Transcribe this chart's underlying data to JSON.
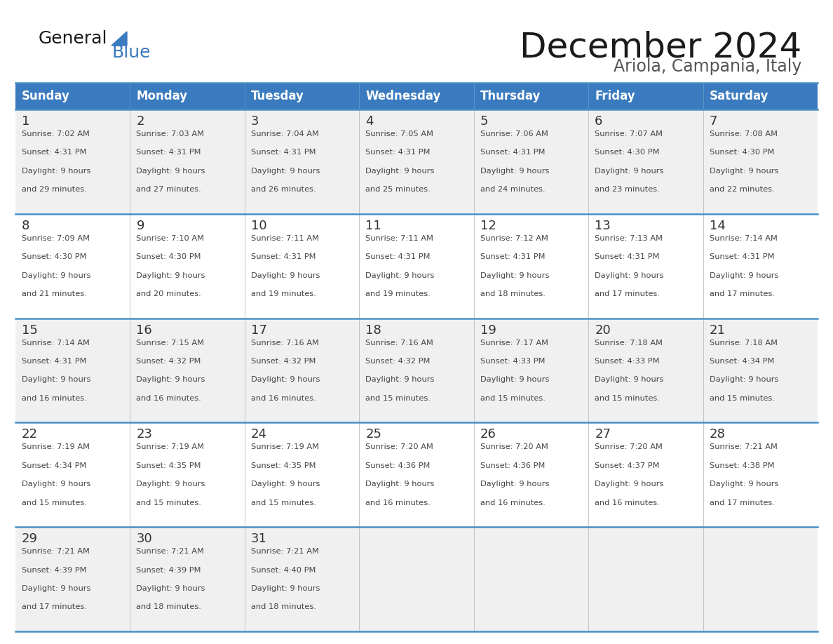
{
  "title": "December 2024",
  "subtitle": "Ariola, Campania, Italy",
  "header_bg_color": "#3a7abf",
  "header_text_color": "#ffffff",
  "days_of_week": [
    "Sunday",
    "Monday",
    "Tuesday",
    "Wednesday",
    "Thursday",
    "Friday",
    "Saturday"
  ],
  "row_bg_even": "#f0f0f0",
  "row_bg_odd": "#ffffff",
  "cell_text_color": "#333333",
  "day_num_color": "#333333",
  "separator_color": "#4a90c4",
  "calendar_data": [
    [
      {
        "day": "1",
        "sunrise": "7:02 AM",
        "sunset": "4:31 PM",
        "daylight_h": "9 hours",
        "daylight_m": "29 minutes"
      },
      {
        "day": "2",
        "sunrise": "7:03 AM",
        "sunset": "4:31 PM",
        "daylight_h": "9 hours",
        "daylight_m": "27 minutes"
      },
      {
        "day": "3",
        "sunrise": "7:04 AM",
        "sunset": "4:31 PM",
        "daylight_h": "9 hours",
        "daylight_m": "26 minutes"
      },
      {
        "day": "4",
        "sunrise": "7:05 AM",
        "sunset": "4:31 PM",
        "daylight_h": "9 hours",
        "daylight_m": "25 minutes"
      },
      {
        "day": "5",
        "sunrise": "7:06 AM",
        "sunset": "4:31 PM",
        "daylight_h": "9 hours",
        "daylight_m": "24 minutes"
      },
      {
        "day": "6",
        "sunrise": "7:07 AM",
        "sunset": "4:30 PM",
        "daylight_h": "9 hours",
        "daylight_m": "23 minutes"
      },
      {
        "day": "7",
        "sunrise": "7:08 AM",
        "sunset": "4:30 PM",
        "daylight_h": "9 hours",
        "daylight_m": "22 minutes"
      }
    ],
    [
      {
        "day": "8",
        "sunrise": "7:09 AM",
        "sunset": "4:30 PM",
        "daylight_h": "9 hours",
        "daylight_m": "21 minutes"
      },
      {
        "day": "9",
        "sunrise": "7:10 AM",
        "sunset": "4:30 PM",
        "daylight_h": "9 hours",
        "daylight_m": "20 minutes"
      },
      {
        "day": "10",
        "sunrise": "7:11 AM",
        "sunset": "4:31 PM",
        "daylight_h": "9 hours",
        "daylight_m": "19 minutes"
      },
      {
        "day": "11",
        "sunrise": "7:11 AM",
        "sunset": "4:31 PM",
        "daylight_h": "9 hours",
        "daylight_m": "19 minutes"
      },
      {
        "day": "12",
        "sunrise": "7:12 AM",
        "sunset": "4:31 PM",
        "daylight_h": "9 hours",
        "daylight_m": "18 minutes"
      },
      {
        "day": "13",
        "sunrise": "7:13 AM",
        "sunset": "4:31 PM",
        "daylight_h": "9 hours",
        "daylight_m": "17 minutes"
      },
      {
        "day": "14",
        "sunrise": "7:14 AM",
        "sunset": "4:31 PM",
        "daylight_h": "9 hours",
        "daylight_m": "17 minutes"
      }
    ],
    [
      {
        "day": "15",
        "sunrise": "7:14 AM",
        "sunset": "4:31 PM",
        "daylight_h": "9 hours",
        "daylight_m": "16 minutes"
      },
      {
        "day": "16",
        "sunrise": "7:15 AM",
        "sunset": "4:32 PM",
        "daylight_h": "9 hours",
        "daylight_m": "16 minutes"
      },
      {
        "day": "17",
        "sunrise": "7:16 AM",
        "sunset": "4:32 PM",
        "daylight_h": "9 hours",
        "daylight_m": "16 minutes"
      },
      {
        "day": "18",
        "sunrise": "7:16 AM",
        "sunset": "4:32 PM",
        "daylight_h": "9 hours",
        "daylight_m": "15 minutes"
      },
      {
        "day": "19",
        "sunrise": "7:17 AM",
        "sunset": "4:33 PM",
        "daylight_h": "9 hours",
        "daylight_m": "15 minutes"
      },
      {
        "day": "20",
        "sunrise": "7:18 AM",
        "sunset": "4:33 PM",
        "daylight_h": "9 hours",
        "daylight_m": "15 minutes"
      },
      {
        "day": "21",
        "sunrise": "7:18 AM",
        "sunset": "4:34 PM",
        "daylight_h": "9 hours",
        "daylight_m": "15 minutes"
      }
    ],
    [
      {
        "day": "22",
        "sunrise": "7:19 AM",
        "sunset": "4:34 PM",
        "daylight_h": "9 hours",
        "daylight_m": "15 minutes"
      },
      {
        "day": "23",
        "sunrise": "7:19 AM",
        "sunset": "4:35 PM",
        "daylight_h": "9 hours",
        "daylight_m": "15 minutes"
      },
      {
        "day": "24",
        "sunrise": "7:19 AM",
        "sunset": "4:35 PM",
        "daylight_h": "9 hours",
        "daylight_m": "15 minutes"
      },
      {
        "day": "25",
        "sunrise": "7:20 AM",
        "sunset": "4:36 PM",
        "daylight_h": "9 hours",
        "daylight_m": "16 minutes"
      },
      {
        "day": "26",
        "sunrise": "7:20 AM",
        "sunset": "4:36 PM",
        "daylight_h": "9 hours",
        "daylight_m": "16 minutes"
      },
      {
        "day": "27",
        "sunrise": "7:20 AM",
        "sunset": "4:37 PM",
        "daylight_h": "9 hours",
        "daylight_m": "16 minutes"
      },
      {
        "day": "28",
        "sunrise": "7:21 AM",
        "sunset": "4:38 PM",
        "daylight_h": "9 hours",
        "daylight_m": "17 minutes"
      }
    ],
    [
      {
        "day": "29",
        "sunrise": "7:21 AM",
        "sunset": "4:39 PM",
        "daylight_h": "9 hours",
        "daylight_m": "17 minutes"
      },
      {
        "day": "30",
        "sunrise": "7:21 AM",
        "sunset": "4:39 PM",
        "daylight_h": "9 hours",
        "daylight_m": "18 minutes"
      },
      {
        "day": "31",
        "sunrise": "7:21 AM",
        "sunset": "4:40 PM",
        "daylight_h": "9 hours",
        "daylight_m": "18 minutes"
      },
      null,
      null,
      null,
      null
    ]
  ]
}
